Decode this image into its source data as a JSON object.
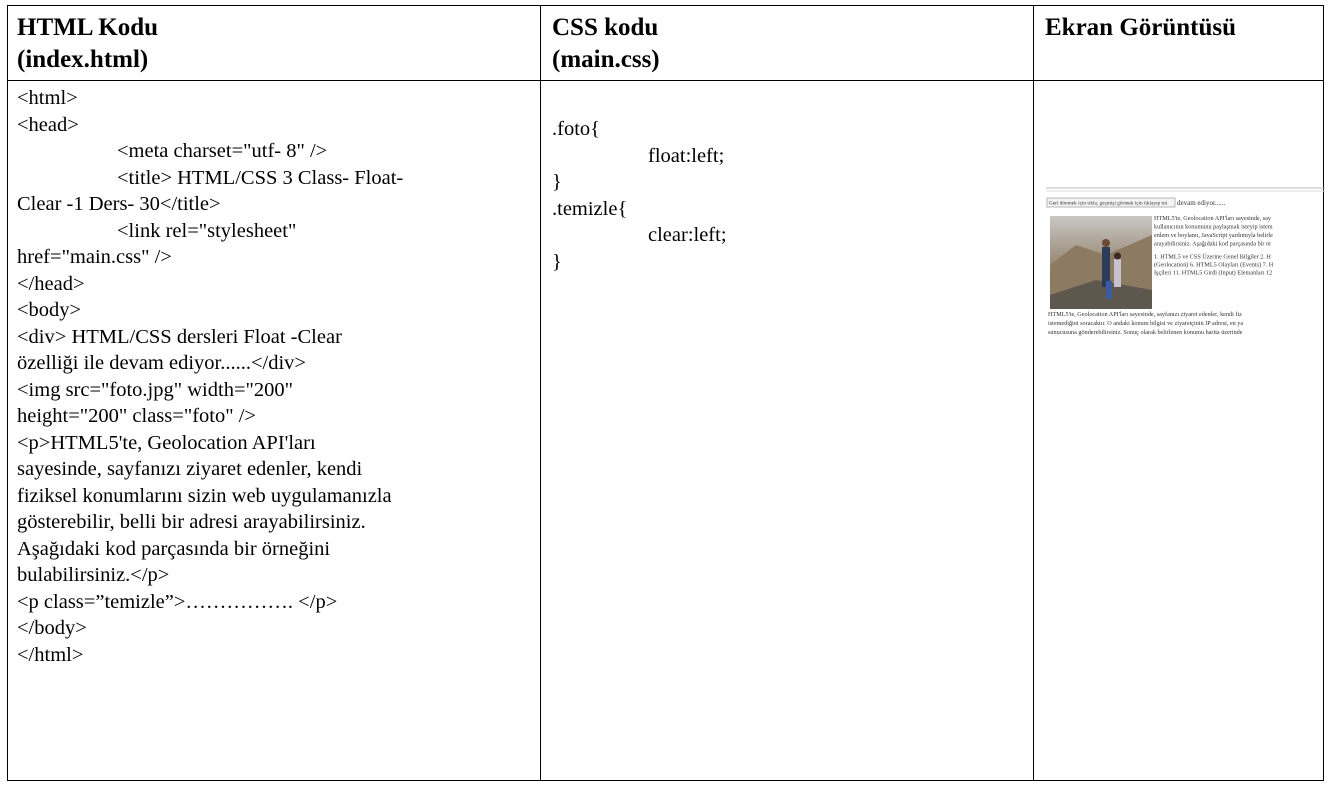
{
  "table": {
    "headers": [
      [
        "HTML Kodu",
        "(index.html)"
      ],
      [
        "CSS kodu",
        "(main.css)"
      ],
      [
        "Ekran Görüntüsü"
      ]
    ],
    "html_code": [
      "<html>",
      "<head>",
      "<meta charset=\"utf- 8\" />",
      "<title> HTML/CSS 3 Class- Float-",
      "Clear -1 Ders- 30</title>",
      "<link rel=\"stylesheet\"",
      "href=\"main.css\"  />",
      "</head>",
      "<body>",
      "<div> HTML/CSS dersleri Float -Clear",
      "özelliği ile devam ediyor......</div>",
      "<img src=\"foto.jpg\" width=\"200\"",
      "height=\"200\" class=\"foto\" />",
      "<p>HTML5'te, Geolocation API'ları",
      "sayesinde, sayfanızı ziyaret edenler, kendi",
      "fiziksel konumlarını sizin web uygulamanızla",
      "gösterebilir, belli bir adresi arayabilirsiniz.",
      "Aşağıdaki kod parçasında bir örneğini",
      "bulabilirsiniz.</p>",
      "<p class=”temizle”>……………. </p>",
      "</body>",
      "</html>"
    ],
    "css_code": [
      ".foto{",
      "float:left;",
      "}",
      ".temizle{",
      "clear:left;",
      "}"
    ],
    "screenshot": {
      "tooltip": "Geri dönmek için tıkla, geçmişi görmek için tıklayıp tut",
      "heading": "devam ediyor......",
      "side_text": [
        "HTML5'te, Geolocation API'ları sayesinde, say",
        "kullanıcının konumunu paylaşmak isteyip istem",
        "enlem ve boylamı, JavaScript yardımıyla belirle",
        "arayabilirsiniz. Aşağıdaki kod parçasında bir ör",
        "1. HTML5 ve CSS Üzerine Genel Bilgiler 2. H",
        "(Geolocation) 6. HTML5 Olayları (Events) 7. H",
        "İşçileri 11. HTML5 Girdi (Input) Elemanları 12"
      ],
      "bottom_text": [
        "HTML5'te, Geolocation API'ları sayesinde, sayfanızı ziyaret edenler, kendi fiz",
        "istemediğini soracaktır. O andaki konum bilgisi ve ziyaretçinin IP adresi, en ya",
        "sunucusuna gönderebilirsiniz. Sonuç olarak belirlenen konumu harita üzerinde"
      ]
    }
  }
}
